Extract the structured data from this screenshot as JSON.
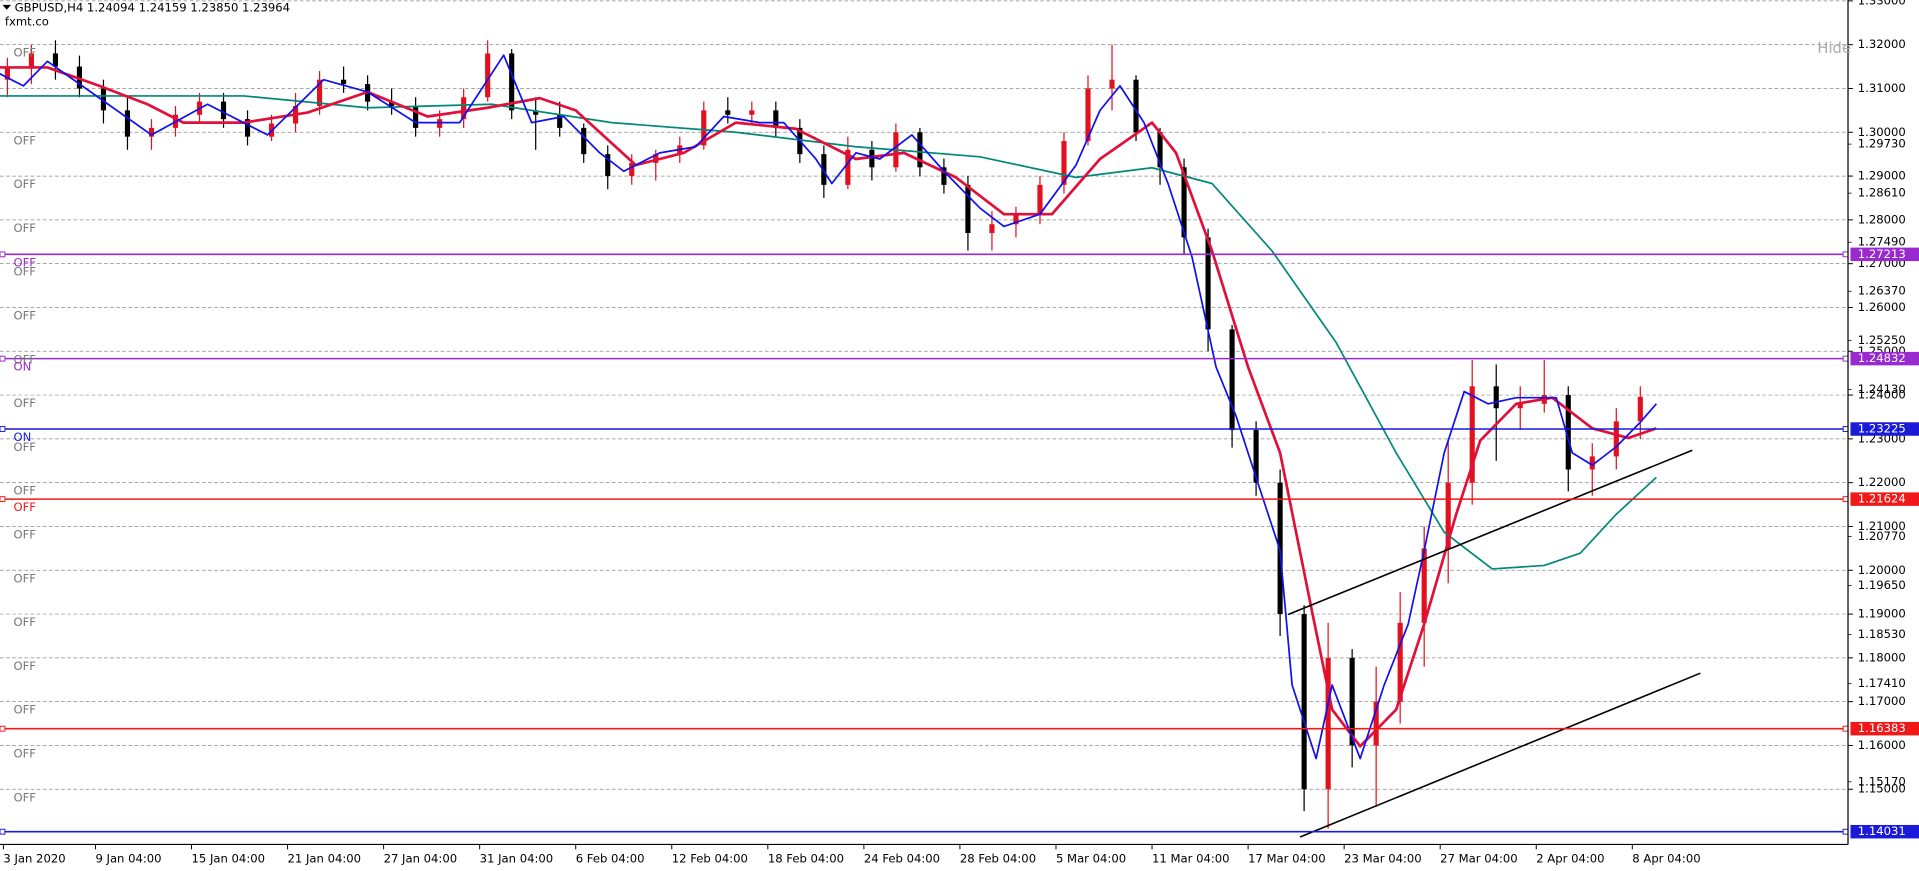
{
  "header": {
    "symbol_line": "GBPUSD,H4  1.24094 1.24159 1.23850 1.23964",
    "site": "fxmt.co",
    "hide_button": "Hide"
  },
  "chart_data": {
    "type": "candlestick",
    "grid": true,
    "up_color": "#e3101e",
    "down_color": "#000000",
    "xlim": [
      1.15,
      462.9
    ],
    "ylim": [
      1.1374,
      1.3302
    ],
    "x": [
      3,
      9,
      15,
      21,
      27,
      33,
      39,
      45,
      51,
      57,
      63,
      69,
      75,
      81,
      87,
      93,
      99,
      105,
      111,
      117,
      123,
      129,
      135,
      141,
      147,
      153,
      159,
      165,
      171,
      177,
      183,
      189,
      195,
      201,
      207,
      213,
      219,
      225,
      231,
      237,
      243,
      249,
      255,
      261,
      267,
      273,
      279,
      285,
      291,
      297,
      303,
      309,
      315,
      321,
      327,
      333,
      339,
      345,
      351,
      357,
      363,
      369,
      375,
      381,
      387,
      393,
      399,
      405,
      411
    ],
    "open": [
      1.312,
      1.315,
      1.318,
      1.315,
      1.31,
      1.305,
      1.299,
      1.301,
      1.304,
      1.307,
      1.303,
      1.299,
      1.302,
      1.306,
      1.312,
      1.311,
      1.307,
      1.306,
      1.301,
      1.303,
      1.308,
      1.318,
      1.305,
      1.304,
      1.301,
      1.295,
      1.29,
      1.293,
      1.295,
      1.297,
      1.305,
      1.304,
      1.305,
      1.301,
      1.295,
      1.288,
      1.296,
      1.292,
      1.3,
      1.292,
      1.288,
      1.277,
      1.279,
      1.281,
      1.288,
      1.298,
      1.31,
      1.312,
      1.3,
      1.292,
      1.276,
      1.255,
      1.232,
      1.22,
      1.19,
      1.15,
      1.18,
      1.16,
      1.17,
      1.188,
      1.205,
      1.22,
      1.242,
      1.237,
      1.238,
      1.24,
      1.223,
      1.226,
      1.234
    ],
    "high": [
      1.317,
      1.32,
      1.321,
      1.3175,
      1.312,
      1.308,
      1.303,
      1.306,
      1.309,
      1.309,
      1.305,
      1.304,
      1.309,
      1.314,
      1.315,
      1.313,
      1.31,
      1.308,
      1.305,
      1.31,
      1.321,
      1.319,
      1.308,
      1.307,
      1.302,
      1.297,
      1.295,
      1.296,
      1.299,
      1.307,
      1.308,
      1.307,
      1.307,
      1.303,
      1.297,
      1.299,
      1.298,
      1.302,
      1.301,
      1.294,
      1.29,
      1.282,
      1.283,
      1.29,
      1.3,
      1.313,
      1.32,
      1.313,
      1.301,
      1.294,
      1.278,
      1.256,
      1.234,
      1.223,
      1.192,
      1.188,
      1.182,
      1.178,
      1.195,
      1.21,
      1.23,
      1.248,
      1.247,
      1.242,
      1.248,
      1.242,
      1.229,
      1.237,
      1.242
    ],
    "low": [
      1.308,
      1.311,
      1.312,
      1.308,
      1.302,
      1.296,
      1.296,
      1.299,
      1.302,
      1.301,
      1.297,
      1.298,
      1.3,
      1.304,
      1.309,
      1.305,
      1.304,
      1.299,
      1.299,
      1.301,
      1.307,
      1.303,
      1.296,
      1.299,
      1.293,
      1.287,
      1.288,
      1.289,
      1.293,
      1.296,
      1.302,
      1.302,
      1.299,
      1.293,
      1.285,
      1.287,
      1.289,
      1.291,
      1.29,
      1.286,
      1.273,
      1.273,
      1.276,
      1.279,
      1.286,
      1.297,
      1.305,
      1.298,
      1.288,
      1.272,
      1.25,
      1.228,
      1.217,
      1.185,
      1.145,
      1.141,
      1.155,
      1.146,
      1.165,
      1.178,
      1.197,
      1.215,
      1.225,
      1.232,
      1.236,
      1.218,
      1.217,
      1.223,
      1.23
    ],
    "close": [
      1.315,
      1.318,
      1.315,
      1.31,
      1.305,
      1.299,
      1.301,
      1.304,
      1.307,
      1.303,
      1.299,
      1.302,
      1.306,
      1.312,
      1.311,
      1.307,
      1.306,
      1.301,
      1.303,
      1.308,
      1.318,
      1.305,
      1.304,
      1.301,
      1.295,
      1.29,
      1.293,
      1.295,
      1.297,
      1.305,
      1.304,
      1.305,
      1.301,
      1.295,
      1.288,
      1.296,
      1.292,
      1.3,
      1.292,
      1.288,
      1.277,
      1.279,
      1.281,
      1.288,
      1.298,
      1.31,
      1.312,
      1.3,
      1.292,
      1.276,
      1.255,
      1.232,
      1.22,
      1.19,
      1.15,
      1.18,
      1.16,
      1.17,
      1.188,
      1.205,
      1.22,
      1.242,
      1.237,
      1.238,
      1.24,
      1.223,
      1.226,
      1.234,
      1.2396
    ],
    "series": [
      {
        "color": "#008878",
        "x": [
          1,
          62,
          93,
          124,
          154,
          185,
          215,
          246,
          270,
          289,
          304,
          319,
          335,
          350,
          362,
          374,
          387,
          396,
          405,
          415
        ],
        "values": [
          1.3083,
          1.3083,
          1.3056,
          1.3064,
          1.3022,
          1.3,
          1.2967,
          1.2944,
          1.2897,
          1.2919,
          1.2883,
          1.2729,
          1.252,
          1.2268,
          1.2087,
          1.2003,
          1.2011,
          1.2039,
          1.2128,
          1.2212
        ]
      },
      {
        "color": "#e0103a",
        "x": [
          1,
          13,
          26,
          38,
          47,
          62,
          78,
          93,
          108,
          123,
          136,
          145,
          160,
          172,
          185,
          200,
          215,
          227,
          240,
          252,
          264,
          276,
          289,
          295,
          304,
          313,
          321,
          329,
          334,
          341,
          350,
          357,
          365,
          371,
          380,
          389,
          399,
          408,
          415
        ],
        "values": [
          1.3148,
          1.3148,
          1.3106,
          1.3064,
          1.3022,
          1.3022,
          1.3045,
          1.3092,
          1.3036,
          1.3056,
          1.3078,
          1.305,
          1.2925,
          1.2953,
          1.3022,
          1.3008,
          1.2939,
          1.2953,
          1.2897,
          1.2813,
          1.2813,
          1.2939,
          1.3022,
          1.2953,
          1.2729,
          1.2464,
          1.2268,
          1.1905,
          1.1682,
          1.1598,
          1.1682,
          1.1877,
          1.2128,
          1.2296,
          1.238,
          1.2394,
          1.2324,
          1.2302,
          1.2324
        ]
      },
      {
        "color": "#1010f0",
        "x": [
          1,
          7,
          13,
          26,
          39,
          53,
          68,
          82,
          93,
          105,
          116,
          127,
          134,
          142,
          151,
          157,
          166,
          175,
          182,
          191,
          197,
          205,
          209,
          215,
          221,
          229,
          237,
          246,
          252,
          261,
          270,
          276,
          281,
          287,
          293,
          299,
          305,
          310,
          316,
          321,
          324,
          330,
          334,
          341,
          347,
          353,
          357,
          362,
          367,
          373,
          380,
          390,
          394,
          399,
          405,
          411,
          415
        ],
        "values": [
          1.3134,
          1.3106,
          1.3162,
          1.3078,
          1.2994,
          1.3064,
          1.2994,
          1.312,
          1.3092,
          1.3022,
          1.3022,
          1.3176,
          1.3022,
          1.3036,
          1.2953,
          1.2911,
          1.2953,
          1.2967,
          1.3036,
          1.3022,
          1.3022,
          1.2939,
          1.2883,
          1.2953,
          1.2939,
          1.2994,
          1.2911,
          1.2827,
          1.2785,
          1.2813,
          1.2925,
          1.305,
          1.3106,
          1.3022,
          1.2883,
          1.2715,
          1.2464,
          1.2352,
          1.2184,
          1.2045,
          1.1738,
          1.157,
          1.1738,
          1.157,
          1.1738,
          1.1877,
          1.2045,
          1.2268,
          1.2408,
          1.238,
          1.2394,
          1.2394,
          1.2268,
          1.224,
          1.2282,
          1.2338,
          1.238
        ]
      }
    ],
    "trendlines": [
      {
        "color": "#000000",
        "x": [
          323,
          424
        ],
        "values": [
          1.1899,
          1.2274
        ]
      },
      {
        "color": "#000000",
        "x": [
          326,
          426
        ],
        "values": [
          1.1391,
          1.1765
        ]
      }
    ],
    "hlines": [
      {
        "value": 1.27213,
        "label": "1.27213",
        "color": "#9a2ad0",
        "flag": "OFF"
      },
      {
        "value": 1.24832,
        "label": "1.24832",
        "color": "#9a2ad0",
        "flag": "ON"
      },
      {
        "value": 1.23225,
        "label": "1.23225",
        "color": "#1a1ad8",
        "flag": "ON"
      },
      {
        "value": 1.21624,
        "label": "1.21624",
        "color": "#f01818",
        "flag": "OFF"
      },
      {
        "value": 1.16383,
        "label": "1.16383",
        "color": "#f01818"
      },
      {
        "value": 1.14031,
        "label": "1.14031",
        "color": "#1a1ad8"
      }
    ],
    "yticks": [
      {
        "value": 1.33,
        "label": "1.33000"
      },
      {
        "value": 1.32,
        "label": "1.32000",
        "flag": "OFF"
      },
      {
        "value": 1.31,
        "label": "1.31000"
      },
      {
        "value": 1.3,
        "label": "1.30000",
        "flag": "OFF"
      },
      {
        "value": 1.29,
        "label": "1.29000",
        "flag": "OFF"
      },
      {
        "value": 1.28,
        "label": "1.28000",
        "flag": "OFF"
      },
      {
        "value": 1.27,
        "label": "1.27000",
        "flag": "OFF"
      },
      {
        "value": 1.26,
        "label": "1.26000",
        "flag": "OFF"
      },
      {
        "value": 1.25,
        "label": "1.25000",
        "flag": "OFF"
      },
      {
        "value": 1.24,
        "label": "1.24000",
        "flag": "OFF"
      },
      {
        "value": 1.23,
        "label": "1.23000",
        "flag": "OFF"
      },
      {
        "value": 1.22,
        "label": "1.22000",
        "flag": "OFF"
      },
      {
        "value": 1.21,
        "label": "1.21000",
        "flag": "OFF"
      },
      {
        "value": 1.2,
        "label": "1.20000",
        "flag": "OFF"
      },
      {
        "value": 1.19,
        "label": "1.19000",
        "flag": "OFF"
      },
      {
        "value": 1.18,
        "label": "1.18000",
        "flag": "OFF"
      },
      {
        "value": 1.17,
        "label": "1.17000",
        "flag": "OFF"
      },
      {
        "value": 1.16,
        "label": "1.16000",
        "flag": "OFF"
      },
      {
        "value": 1.15,
        "label": "1.15000",
        "flag": "OFF"
      }
    ],
    "minor_yticks": [
      {
        "value": 1.2973,
        "label": "1.29730"
      },
      {
        "value": 1.2861,
        "label": "1.28610"
      },
      {
        "value": 1.2749,
        "label": "1.27490"
      },
      {
        "value": 1.2637,
        "label": "1.26370"
      },
      {
        "value": 1.2525,
        "label": "1.25250"
      },
      {
        "value": 1.2413,
        "label": "1.24130"
      },
      {
        "value": 1.2077,
        "label": "1.20770"
      },
      {
        "value": 1.1965,
        "label": "1.19650"
      },
      {
        "value": 1.1853,
        "label": "1.18530"
      },
      {
        "value": 1.1741,
        "label": "1.17410"
      },
      {
        "value": 1.1517,
        "label": "1.15170"
      }
    ],
    "xticks": [
      {
        "value": 2,
        "label": "3 Jan 2020"
      },
      {
        "value": 25,
        "label": "9 Jan 04:00"
      },
      {
        "value": 49,
        "label": "15 Jan 04:00"
      },
      {
        "value": 73,
        "label": "21 Jan 04:00"
      },
      {
        "value": 97,
        "label": "27 Jan 04:00"
      },
      {
        "value": 121,
        "label": "31 Jan 04:00"
      },
      {
        "value": 145,
        "label": "6 Feb 04:00"
      },
      {
        "value": 169,
        "label": "12 Feb 04:00"
      },
      {
        "value": 193,
        "label": "18 Feb 04:00"
      },
      {
        "value": 217,
        "label": "24 Feb 04:00"
      },
      {
        "value": 241,
        "label": "28 Feb 04:00"
      },
      {
        "value": 265,
        "label": "5 Mar 04:00"
      },
      {
        "value": 289,
        "label": "11 Mar 04:00"
      },
      {
        "value": 313,
        "label": "17 Mar 04:00"
      },
      {
        "value": 337,
        "label": "23 Mar 04:00"
      },
      {
        "value": 361,
        "label": "27 Mar 04:00"
      },
      {
        "value": 385,
        "label": "2 Apr 04:00"
      },
      {
        "value": 409,
        "label": "8 Apr 04:00"
      }
    ]
  }
}
